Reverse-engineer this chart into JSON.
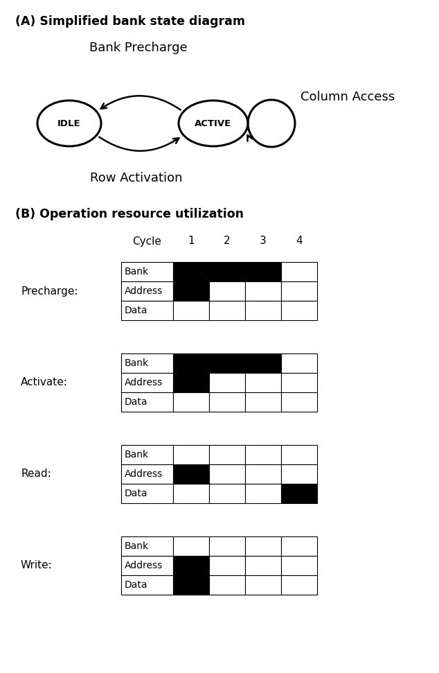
{
  "title_a": "(A) Simplified bank state diagram",
  "title_b": "(B) Operation resource utilization",
  "label_bank_precharge": "Bank Precharge",
  "label_row_activation": "Row Activation",
  "label_column_access": "Column Access",
  "label_idle": "IDLE",
  "label_active": "ACTIVE",
  "cycle_label": "Cycle",
  "cycle_numbers": [
    "1",
    "2",
    "3",
    "4"
  ],
  "operations": [
    "Precharge:",
    "Activate:",
    "Read:",
    "Write:"
  ],
  "resources": [
    "Bank",
    "Address",
    "Data"
  ],
  "grids": {
    "Precharge:": {
      "Bank": [
        1,
        1,
        1,
        0
      ],
      "Address": [
        1,
        0,
        0,
        0
      ],
      "Data": [
        0,
        0,
        0,
        0
      ]
    },
    "Activate:": {
      "Bank": [
        1,
        1,
        1,
        0
      ],
      "Address": [
        1,
        0,
        0,
        0
      ],
      "Data": [
        0,
        0,
        0,
        0
      ]
    },
    "Read:": {
      "Bank": [
        0,
        0,
        0,
        0
      ],
      "Address": [
        1,
        0,
        0,
        0
      ],
      "Data": [
        0,
        0,
        0,
        1
      ]
    },
    "Write:": {
      "Bank": [
        0,
        0,
        0,
        0
      ],
      "Address": [
        1,
        0,
        0,
        0
      ],
      "Data": [
        1,
        0,
        0,
        0
      ]
    }
  },
  "black": "#000000",
  "white": "#ffffff",
  "bg_color": "#ffffff",
  "font_size_title": 12.5,
  "font_size_state_label": 14,
  "font_size_diagram_label": 13,
  "font_size_state": 9.5,
  "font_size_table_label": 11,
  "font_size_table_cell": 10,
  "font_size_cycle_header": 11,
  "font_size_op_label": 11
}
